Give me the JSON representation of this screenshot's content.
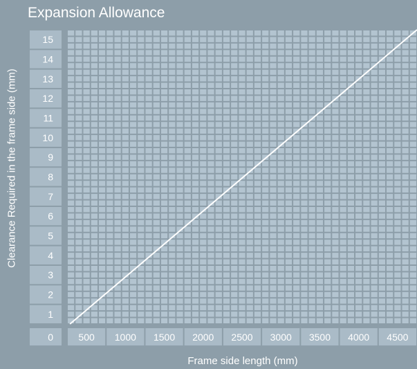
{
  "chart_data": {
    "type": "line",
    "title": "Expansion Allowance",
    "xlabel": "Frame side length (mm)",
    "ylabel": "Clearance Required in the frame side (mm)",
    "origin_label": "0",
    "x_ticks": [
      "500",
      "1000",
      "1500",
      "2000",
      "2500",
      "3000",
      "3500",
      "4000",
      "4500"
    ],
    "y_ticks": [
      "1",
      "2",
      "3",
      "4",
      "5",
      "6",
      "7",
      "8",
      "9",
      "10",
      "11",
      "12",
      "13",
      "14",
      "15"
    ],
    "xlim": [
      250,
      4750
    ],
    "ylim": [
      0.5,
      15.5
    ],
    "grid": true,
    "series": [
      {
        "x": [
          287,
          4750
        ],
        "y": [
          0.5,
          15.5
        ]
      }
    ]
  },
  "colors": {
    "background": "#8d9ea9",
    "panel": "#aabbc7",
    "grid_cell": "#b3c4d0",
    "line": "#ffffff",
    "text": "#ffffff"
  }
}
